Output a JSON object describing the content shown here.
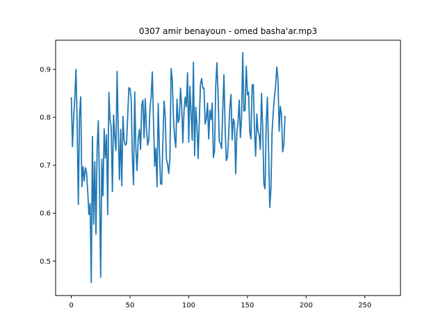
{
  "chart_data": {
    "type": "line",
    "title": "0307 amir benayoun - omed basha'ar.mp3",
    "xlabel": "",
    "ylabel": "",
    "xlim": [
      -13.35,
      280.35
    ],
    "ylim": [
      0.428,
      0.961
    ],
    "x_ticks": [
      0,
      50,
      100,
      150,
      200,
      250
    ],
    "y_ticks": [
      0.5,
      0.6,
      0.7,
      0.8,
      0.9
    ],
    "grid": false,
    "line_color": "#1f77b4",
    "series": [
      {
        "values": [
          0.842,
          0.739,
          0.8,
          0.843,
          0.9,
          0.785,
          0.618,
          0.804,
          0.843,
          0.655,
          0.697,
          0.667,
          0.695,
          0.685,
          0.645,
          0.597,
          0.62,
          0.455,
          0.76,
          0.577,
          0.707,
          0.556,
          0.734,
          0.793,
          0.665,
          0.466,
          0.713,
          0.636,
          0.776,
          0.715,
          0.764,
          0.597,
          0.852,
          0.795,
          0.78,
          0.645,
          0.805,
          0.76,
          0.731,
          0.896,
          0.768,
          0.67,
          0.775,
          0.657,
          0.802,
          0.751,
          0.742,
          0.745,
          0.8,
          0.862,
          0.86,
          0.838,
          0.719,
          0.659,
          0.853,
          0.733,
          0.689,
          0.755,
          0.775,
          0.733,
          0.826,
          0.836,
          0.757,
          0.839,
          0.776,
          0.742,
          0.752,
          0.82,
          0.842,
          0.895,
          0.791,
          0.698,
          0.736,
          0.655,
          0.829,
          0.735,
          0.662,
          0.66,
          0.75,
          0.834,
          0.801,
          0.713,
          0.702,
          0.683,
          0.716,
          0.902,
          0.878,
          0.797,
          0.759,
          0.737,
          0.838,
          0.789,
          0.797,
          0.861,
          0.824,
          0.747,
          0.813,
          0.842,
          0.822,
          0.893,
          0.748,
          0.865,
          0.808,
          0.752,
          0.915,
          0.72,
          0.821,
          0.783,
          0.714,
          0.792,
          0.87,
          0.881,
          0.861,
          0.861,
          0.786,
          0.797,
          0.83,
          0.755,
          0.815,
          0.795,
          0.83,
          0.716,
          0.731,
          0.865,
          0.914,
          0.847,
          0.75,
          0.746,
          0.735,
          0.818,
          0.889,
          0.777,
          0.71,
          0.717,
          0.762,
          0.82,
          0.848,
          0.753,
          0.797,
          0.788,
          0.682,
          0.769,
          0.789,
          0.836,
          0.758,
          0.8,
          0.935,
          0.813,
          0.815,
          0.907,
          0.847,
          0.853,
          0.769,
          0.755,
          0.867,
          0.869,
          0.774,
          0.719,
          0.807,
          0.771,
          0.764,
          0.733,
          0.85,
          0.779,
          0.661,
          0.651,
          0.788,
          0.842,
          0.733,
          0.612,
          0.65,
          0.77,
          0.811,
          0.843,
          0.866,
          0.905,
          0.881,
          0.771,
          0.823,
          0.805,
          0.728,
          0.743,
          0.803
        ]
      }
    ]
  }
}
